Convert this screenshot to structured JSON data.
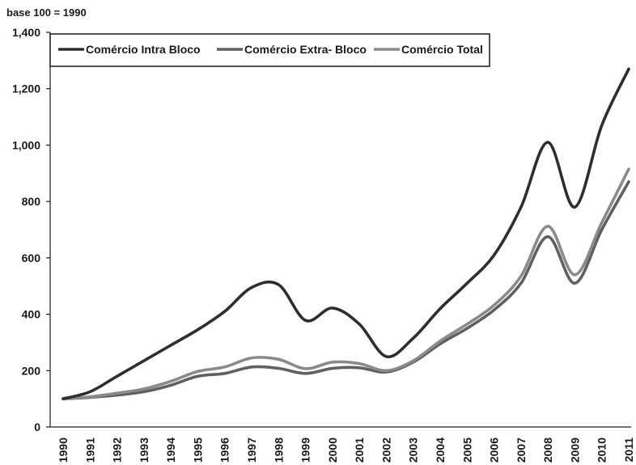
{
  "chart_data": {
    "type": "line",
    "unit_label": "base 100 = 1990",
    "x": [
      "1990",
      "1991",
      "1992",
      "1993",
      "1994",
      "1995",
      "1996",
      "1997",
      "1998",
      "1999",
      "2000",
      "2001",
      "2002",
      "2003",
      "2004",
      "2005",
      "2006",
      "2007",
      "2008",
      "2009",
      "2010",
      "2011"
    ],
    "ylim": [
      0,
      1400
    ],
    "yticks": [
      0,
      200,
      400,
      600,
      800,
      1000,
      1200,
      1400
    ],
    "ytick_labels": [
      "0",
      "200",
      "400",
      "600",
      "800",
      "1,000",
      "1,200",
      "1,400"
    ],
    "grid": false,
    "legend_position": "top-left",
    "series": [
      {
        "name": "Comércio Intra Bloco",
        "color": "#2e2e2e",
        "values": [
          100,
          125,
          180,
          235,
          290,
          345,
          410,
          495,
          505,
          378,
          422,
          365,
          250,
          315,
          420,
          510,
          610,
          780,
          1010,
          780,
          1070,
          1270
        ]
      },
      {
        "name": "Comércio Extra- Bloco",
        "color": "#606060",
        "values": [
          100,
          105,
          113,
          125,
          148,
          180,
          190,
          213,
          208,
          190,
          208,
          210,
          195,
          230,
          295,
          350,
          415,
          510,
          675,
          510,
          700,
          870
        ]
      },
      {
        "name": "Comércio Total",
        "color": "#8a8a8a",
        "values": [
          100,
          107,
          120,
          135,
          162,
          197,
          213,
          245,
          240,
          207,
          230,
          225,
          200,
          235,
          305,
          365,
          432,
          535,
          712,
          540,
          725,
          915
        ]
      }
    ]
  }
}
